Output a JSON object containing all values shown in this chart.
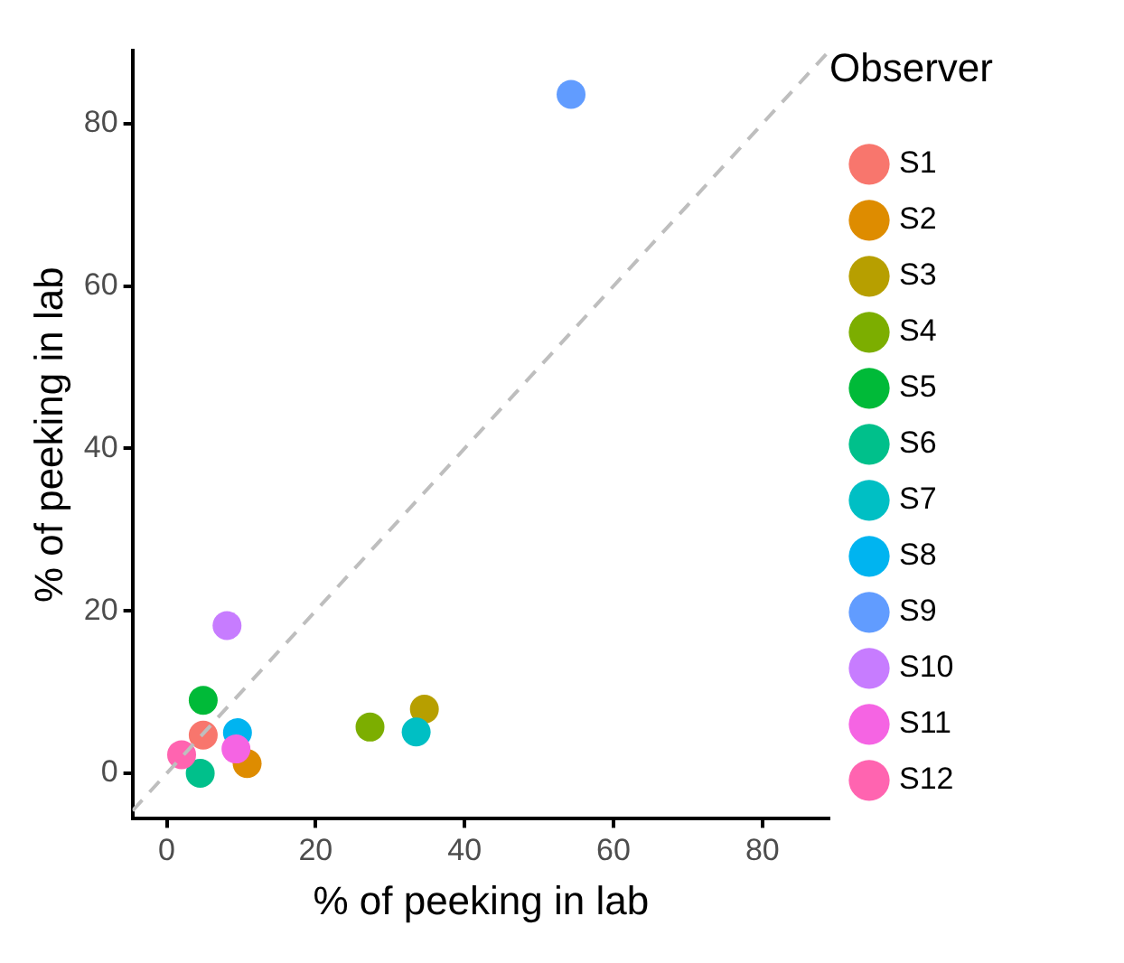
{
  "chart_data": {
    "type": "scatter",
    "xlabel": "% of peeking in lab",
    "ylabel": "% of peeking in lab",
    "legend_title": "Observer",
    "xlim": [
      -4.6,
      89
    ],
    "ylim": [
      -5.6,
      89
    ],
    "xticks": [
      0,
      20,
      40,
      60,
      80
    ],
    "yticks": [
      0,
      20,
      40,
      60,
      80
    ],
    "grid": false,
    "legend": "right",
    "marker": "circle",
    "series": [
      {
        "type": "line",
        "color": "#bebebe",
        "line_style": "dashed",
        "marker": "none",
        "x": [
          -4.6,
          89
        ],
        "values": [
          -4.6,
          89
        ]
      },
      {
        "name": "S1",
        "color": "#f8766d",
        "x": [
          4.9
        ],
        "values": [
          4.7
        ]
      },
      {
        "name": "S2",
        "color": "#de8c00",
        "x": [
          10.8
        ],
        "values": [
          1.2
        ]
      },
      {
        "name": "S3",
        "color": "#b79f00",
        "x": [
          34.6
        ],
        "values": [
          7.9
        ]
      },
      {
        "name": "S4",
        "color": "#7cae00",
        "x": [
          27.3
        ],
        "values": [
          5.7
        ]
      },
      {
        "name": "S5",
        "color": "#00ba38",
        "x": [
          4.9
        ],
        "values": [
          9.0
        ]
      },
      {
        "name": "S6",
        "color": "#00c08b",
        "x": [
          4.5
        ],
        "values": [
          0
        ]
      },
      {
        "name": "S7",
        "color": "#00bfc4",
        "x": [
          33.5
        ],
        "values": [
          5.1
        ]
      },
      {
        "name": "S8",
        "color": "#00b4f0",
        "x": [
          9.5
        ],
        "values": [
          5.0
        ]
      },
      {
        "name": "S9",
        "color": "#619cff",
        "x": [
          54.3
        ],
        "values": [
          83.6
        ]
      },
      {
        "name": "S10",
        "color": "#c77cff",
        "x": [
          8.1
        ],
        "values": [
          18.2
        ]
      },
      {
        "name": "S11",
        "color": "#f564e3",
        "x": [
          9.3
        ],
        "values": [
          3.0
        ]
      },
      {
        "name": "S12",
        "color": "#ff64b0",
        "x": [
          2.0
        ],
        "values": [
          2.3
        ]
      }
    ]
  }
}
